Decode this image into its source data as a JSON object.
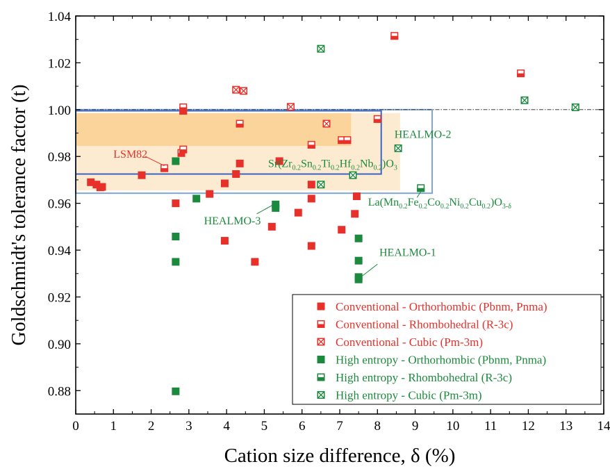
{
  "chart_data": {
    "type": "scatter",
    "title": "",
    "xlabel": "Cation size difference, δ (%)",
    "ylabel": "Goldschmidt's tolerance factor (t)",
    "xlim": [
      0,
      14
    ],
    "ylim": [
      0.87,
      1.04
    ],
    "x_ticks": [
      "0",
      "1",
      "2",
      "3",
      "4",
      "5",
      "6",
      "7",
      "8",
      "9",
      "10",
      "11",
      "12",
      "13",
      "14"
    ],
    "y_ticks": [
      "0.88",
      "0.90",
      "0.92",
      "0.94",
      "0.96",
      "0.98",
      "1.00",
      "1.02",
      "1.04"
    ],
    "grid": false,
    "legend_position": "bottom-right",
    "reference_line": {
      "y": 1.0,
      "style": "dash-dot"
    },
    "shaded_regions": [
      {
        "name": "outer-region",
        "x": [
          0.0,
          8.6
        ],
        "y": [
          0.9655,
          0.9985
        ],
        "color": "#FCEBD0"
      },
      {
        "name": "inner-region",
        "x": [
          0.0,
          7.3
        ],
        "y": [
          0.9845,
          0.9985
        ],
        "color": "#FAD49A"
      }
    ],
    "boxes": [
      {
        "name": "box-a",
        "x": [
          0.0,
          8.1
        ],
        "y": [
          0.9725,
          0.9995
        ],
        "color": "#3B63C4"
      },
      {
        "name": "box-b",
        "x": [
          0.0,
          9.45
        ],
        "y": [
          0.9643,
          1.0
        ],
        "color": "#7EA6D8"
      }
    ],
    "series": [
      {
        "name": "Conventional - Orthorhombic (Pbnm, Pnma)",
        "color": "#E8302A",
        "marker": "filled",
        "points": [
          [
            0.4,
            0.969
          ],
          [
            0.55,
            0.968
          ],
          [
            0.65,
            0.9668
          ],
          [
            0.7,
            0.967
          ],
          [
            1.75,
            0.972
          ],
          [
            2.65,
            0.96
          ],
          [
            3.55,
            0.964
          ],
          [
            3.95,
            0.9685
          ],
          [
            3.95,
            0.944
          ],
          [
            4.25,
            0.9725
          ],
          [
            4.35,
            0.977
          ],
          [
            4.75,
            0.935
          ],
          [
            5.2,
            0.95
          ],
          [
            5.4,
            0.978
          ],
          [
            5.9,
            0.956
          ],
          [
            6.25,
            0.9418
          ],
          [
            6.25,
            0.962
          ],
          [
            6.25,
            0.968
          ],
          [
            7.05,
            0.9487
          ],
          [
            7.4,
            0.9555
          ],
          [
            7.45,
            0.963
          ]
        ]
      },
      {
        "name": "Conventional - Rhombohedral (R-3c)",
        "color": "#E8302A",
        "marker": "half",
        "points": [
          [
            2.35,
            0.975
          ],
          [
            2.8,
            0.9815
          ],
          [
            2.85,
            0.983
          ],
          [
            2.85,
            0.9995
          ],
          [
            2.85,
            1.001
          ],
          [
            4.35,
            0.994
          ],
          [
            6.25,
            0.985
          ],
          [
            7.05,
            0.987
          ],
          [
            7.2,
            0.987
          ],
          [
            8.0,
            0.996
          ],
          [
            8.45,
            1.0315
          ],
          [
            11.8,
            1.0155
          ]
        ]
      },
      {
        "name": "Conventional - Cubic (Pm-3m)",
        "color": "#E8302A",
        "marker": "cross",
        "points": [
          [
            4.25,
            1.0085
          ],
          [
            4.45,
            1.008
          ],
          [
            5.7,
            1.0012
          ],
          [
            6.65,
            0.994
          ]
        ]
      },
      {
        "name": "High entropy - Orthorhombic (Pbnm, Pnma)",
        "color": "#1C8A3C",
        "marker": "filled",
        "points": [
          [
            2.65,
            0.978
          ],
          [
            2.65,
            0.9458
          ],
          [
            2.65,
            0.935
          ],
          [
            2.65,
            0.8797
          ],
          [
            3.2,
            0.962
          ],
          [
            5.3,
            0.9595
          ],
          [
            5.3,
            0.958
          ],
          [
            7.5,
            0.945
          ],
          [
            7.5,
            0.9355
          ],
          [
            7.5,
            0.9285
          ],
          [
            7.5,
            0.9275
          ]
        ]
      },
      {
        "name": "High entropy - Rhombohedral  (R-3c)",
        "color": "#1C8A3C",
        "marker": "half",
        "points": [
          [
            9.15,
            0.9665
          ]
        ]
      },
      {
        "name": "High entropy - Cubic (Pm-3m)",
        "color": "#1C8A3C",
        "marker": "cross",
        "points": [
          [
            6.5,
            0.968
          ],
          [
            6.5,
            1.026
          ],
          [
            7.35,
            0.972
          ],
          [
            8.55,
            0.9835
          ],
          [
            11.9,
            1.004
          ],
          [
            13.25,
            1.001
          ]
        ]
      }
    ],
    "annotations": [
      {
        "name": "lsm82",
        "text": "LSM82",
        "color": "#E8302A",
        "x": 1.0,
        "y": 0.9795,
        "leader": [
          [
            1.85,
            0.98
          ],
          [
            2.35,
            0.976
          ]
        ]
      },
      {
        "name": "healmo-2",
        "text": "HEALMO-2",
        "color": "#1C8A3C",
        "x": 8.45,
        "y": 0.988
      },
      {
        "name": "srzrsn",
        "color": "#1C8A3C",
        "x": 5.1,
        "y": 0.9755,
        "parts": [
          "Sr(Zr",
          "0.2",
          "Sn",
          "0.2",
          "Ti",
          "0.2",
          "Hf",
          "0.2",
          "Nb",
          "0.2",
          ")O",
          "3"
        ]
      },
      {
        "name": "lamnfe",
        "color": "#1C8A3C",
        "x": 7.75,
        "y": 0.959,
        "parts": [
          "La(Mn",
          "0.2",
          "Fe",
          "0.2",
          "Co",
          "0.2",
          "Ni",
          "0.2",
          "Cu",
          "0.2",
          ")O",
          "3-δ"
        ],
        "leader": [
          [
            9.05,
            0.9625
          ],
          [
            9.15,
            0.965
          ]
        ]
      },
      {
        "name": "healmo-3",
        "text": "HEALMO-3",
        "color": "#1C8A3C",
        "x": 3.4,
        "y": 0.951,
        "leader": [
          [
            4.8,
            0.9555
          ],
          [
            5.25,
            0.9595
          ]
        ]
      },
      {
        "name": "healmo-1",
        "text": "HEALMO-1",
        "color": "#1C8A3C",
        "x": 8.05,
        "y": 0.9375,
        "leader": [
          [
            7.6,
            0.929
          ],
          [
            8.0,
            0.934
          ]
        ]
      }
    ]
  }
}
